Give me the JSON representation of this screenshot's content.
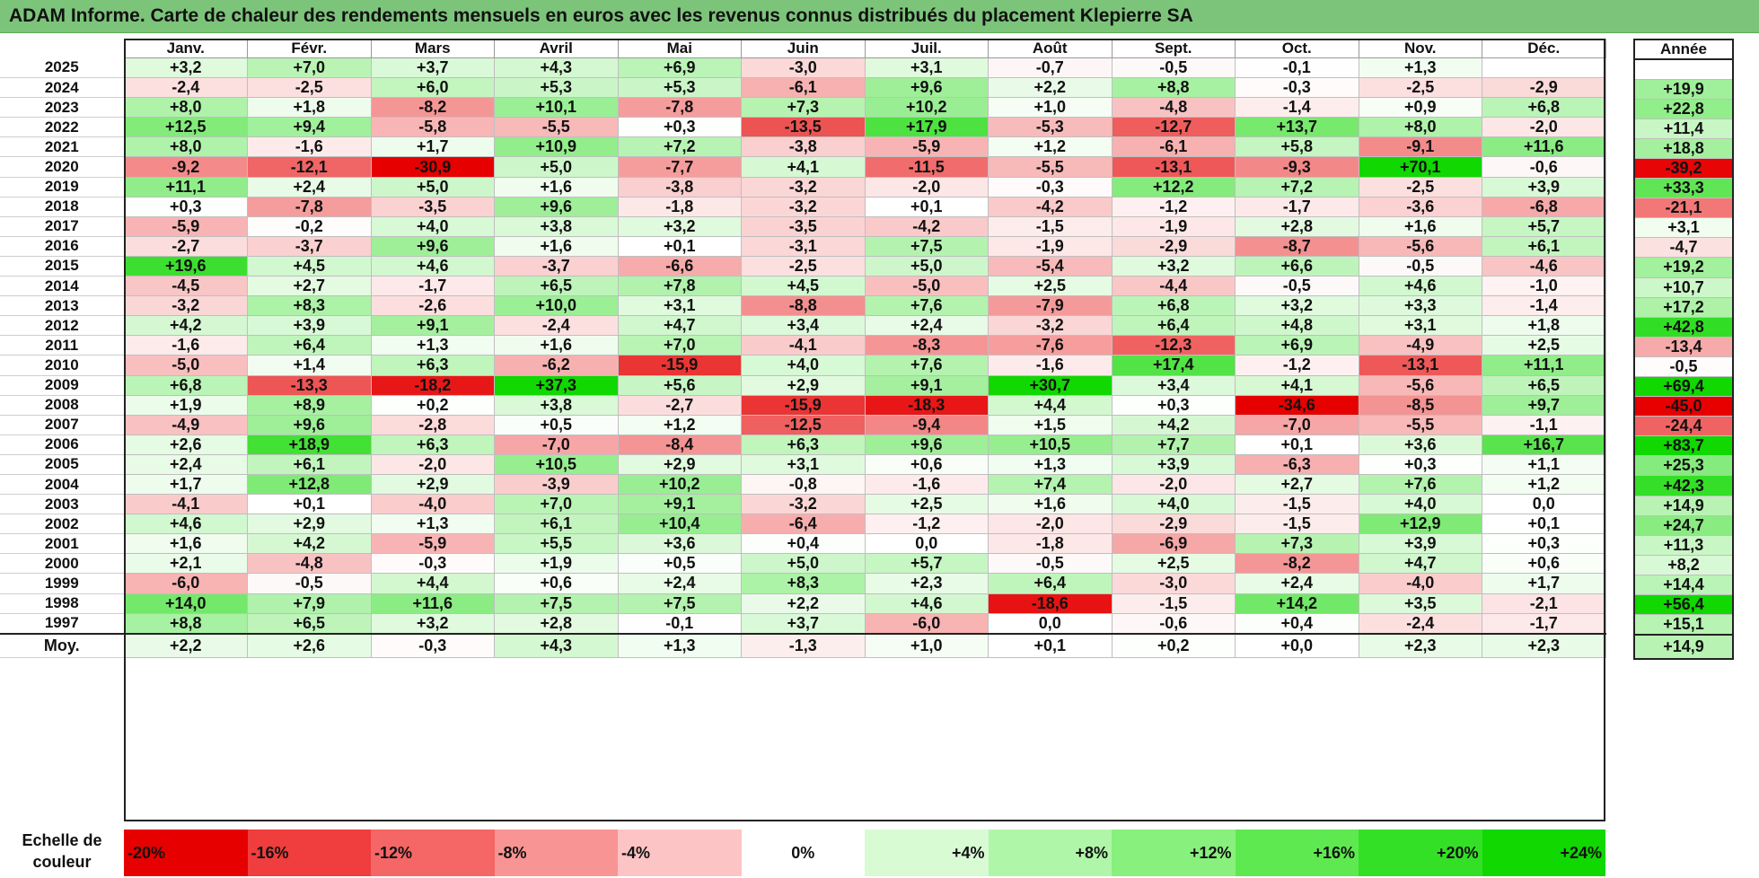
{
  "title": "ADAM Informe. Carte de chaleur des rendements mensuels en euros avec les revenus connus distribués du placement Klepierre SA",
  "chart_data": {
    "type": "heatmap",
    "title": "ADAM Informe. Carte de chaleur des rendements mensuels en euros avec les revenus connus distribués du placement Klepierre SA",
    "months": [
      "Janv.",
      "Févr.",
      "Mars",
      "Avril",
      "Mai",
      "Juin",
      "Juil.",
      "Août",
      "Sept.",
      "Oct.",
      "Nov.",
      "Déc."
    ],
    "year_header": "Année",
    "rows": [
      {
        "year": "2025",
        "values": [
          "+3,2",
          "+7,0",
          "+3,7",
          "+4,3",
          "+6,9",
          "-3,0",
          "+3,1",
          "-0,7",
          "-0,5",
          "-0,1",
          "+1,3",
          ""
        ],
        "annual": ""
      },
      {
        "year": "2024",
        "values": [
          "-2,4",
          "-2,5",
          "+6,0",
          "+5,3",
          "+5,3",
          "-6,1",
          "+9,6",
          "+2,2",
          "+8,8",
          "-0,3",
          "-2,5",
          "-2,9"
        ],
        "annual": "+19,9"
      },
      {
        "year": "2023",
        "values": [
          "+8,0",
          "+1,8",
          "-8,2",
          "+10,1",
          "-7,8",
          "+7,3",
          "+10,2",
          "+1,0",
          "-4,8",
          "-1,4",
          "+0,9",
          "+6,8"
        ],
        "annual": "+22,8"
      },
      {
        "year": "2022",
        "values": [
          "+12,5",
          "+9,4",
          "-5,8",
          "-5,5",
          "+0,3",
          "-13,5",
          "+17,9",
          "-5,3",
          "-12,7",
          "+13,7",
          "+8,0",
          "-2,0"
        ],
        "annual": "+11,4"
      },
      {
        "year": "2021",
        "values": [
          "+8,0",
          "-1,6",
          "+1,7",
          "+10,9",
          "+7,2",
          "-3,8",
          "-5,9",
          "+1,2",
          "-6,1",
          "+5,8",
          "-9,1",
          "+11,6"
        ],
        "annual": "+18,8"
      },
      {
        "year": "2020",
        "values": [
          "-9,2",
          "-12,1",
          "-30,9",
          "+5,0",
          "-7,7",
          "+4,1",
          "-11,5",
          "-5,5",
          "-13,1",
          "-9,3",
          "+70,1",
          "-0,6"
        ],
        "annual": "-39,2"
      },
      {
        "year": "2019",
        "values": [
          "+11,1",
          "+2,4",
          "+5,0",
          "+1,6",
          "-3,8",
          "-3,2",
          "-2,0",
          "-0,3",
          "+12,2",
          "+7,2",
          "-2,5",
          "+3,9"
        ],
        "annual": "+33,3"
      },
      {
        "year": "2018",
        "values": [
          "+0,3",
          "-7,8",
          "-3,5",
          "+9,6",
          "-1,8",
          "-3,2",
          "+0,1",
          "-4,2",
          "-1,2",
          "-1,7",
          "-3,6",
          "-6,8"
        ],
        "annual": "-21,1"
      },
      {
        "year": "2017",
        "values": [
          "-5,9",
          "-0,2",
          "+4,0",
          "+3,8",
          "+3,2",
          "-3,5",
          "-4,2",
          "-1,5",
          "-1,9",
          "+2,8",
          "+1,6",
          "+5,7"
        ],
        "annual": "+3,1"
      },
      {
        "year": "2016",
        "values": [
          "-2,7",
          "-3,7",
          "+9,6",
          "+1,6",
          "+0,1",
          "-3,1",
          "+7,5",
          "-1,9",
          "-2,9",
          "-8,7",
          "-5,6",
          "+6,1"
        ],
        "annual": "-4,7"
      },
      {
        "year": "2015",
        "values": [
          "+19,6",
          "+4,5",
          "+4,6",
          "-3,7",
          "-6,6",
          "-2,5",
          "+5,0",
          "-5,4",
          "+3,2",
          "+6,6",
          "-0,5",
          "-4,6"
        ],
        "annual": "+19,2"
      },
      {
        "year": "2014",
        "values": [
          "-4,5",
          "+2,7",
          "-1,7",
          "+6,5",
          "+7,8",
          "+4,5",
          "-5,0",
          "+2,5",
          "-4,4",
          "-0,5",
          "+4,6",
          "-1,0"
        ],
        "annual": "+10,7"
      },
      {
        "year": "2013",
        "values": [
          "-3,2",
          "+8,3",
          "-2,6",
          "+10,0",
          "+3,1",
          "-8,8",
          "+7,6",
          "-7,9",
          "+6,8",
          "+3,2",
          "+3,3",
          "-1,4"
        ],
        "annual": "+17,2"
      },
      {
        "year": "2012",
        "values": [
          "+4,2",
          "+3,9",
          "+9,1",
          "-2,4",
          "+4,7",
          "+3,4",
          "+2,4",
          "-3,2",
          "+6,4",
          "+4,8",
          "+3,1",
          "+1,8"
        ],
        "annual": "+42,8"
      },
      {
        "year": "2011",
        "values": [
          "-1,6",
          "+6,4",
          "+1,3",
          "+1,6",
          "+7,0",
          "-4,1",
          "-8,3",
          "-7,6",
          "-12,3",
          "+6,9",
          "-4,9",
          "+2,5"
        ],
        "annual": "-13,4"
      },
      {
        "year": "2010",
        "values": [
          "-5,0",
          "+1,4",
          "+6,3",
          "-6,2",
          "-15,9",
          "+4,0",
          "+7,6",
          "-1,6",
          "+17,4",
          "-1,2",
          "-13,1",
          "+11,1"
        ],
        "annual": "-0,5"
      },
      {
        "year": "2009",
        "values": [
          "+6,8",
          "-13,3",
          "-18,2",
          "+37,3",
          "+5,6",
          "+2,9",
          "+9,1",
          "+30,7",
          "+3,4",
          "+4,1",
          "-5,6",
          "+6,5"
        ],
        "annual": "+69,4"
      },
      {
        "year": "2008",
        "values": [
          "+1,9",
          "+8,9",
          "+0,2",
          "+3,8",
          "-2,7",
          "-15,9",
          "-18,3",
          "+4,4",
          "+0,3",
          "-34,6",
          "-8,5",
          "+9,7"
        ],
        "annual": "-45,0"
      },
      {
        "year": "2007",
        "values": [
          "-4,9",
          "+9,6",
          "-2,8",
          "+0,5",
          "+1,2",
          "-12,5",
          "-9,4",
          "+1,5",
          "+4,2",
          "-7,0",
          "-5,5",
          "-1,1"
        ],
        "annual": "-24,4"
      },
      {
        "year": "2006",
        "values": [
          "+2,6",
          "+18,9",
          "+6,3",
          "-7,0",
          "-8,4",
          "+6,3",
          "+9,6",
          "+10,5",
          "+7,7",
          "+0,1",
          "+3,6",
          "+16,7"
        ],
        "annual": "+83,7"
      },
      {
        "year": "2005",
        "values": [
          "+2,4",
          "+6,1",
          "-2,0",
          "+10,5",
          "+2,9",
          "+3,1",
          "+0,6",
          "+1,3",
          "+3,9",
          "-6,3",
          "+0,3",
          "+1,1"
        ],
        "annual": "+25,3"
      },
      {
        "year": "2004",
        "values": [
          "+1,7",
          "+12,8",
          "+2,9",
          "-3,9",
          "+10,2",
          "-0,8",
          "-1,6",
          "+7,4",
          "-2,0",
          "+2,7",
          "+7,6",
          "+1,2"
        ],
        "annual": "+42,3"
      },
      {
        "year": "2003",
        "values": [
          "-4,1",
          "+0,1",
          "-4,0",
          "+7,0",
          "+9,1",
          "-3,2",
          "+2,5",
          "+1,6",
          "+4,0",
          "-1,5",
          "+4,0",
          "0,0"
        ],
        "annual": "+14,9"
      },
      {
        "year": "2002",
        "values": [
          "+4,6",
          "+2,9",
          "+1,3",
          "+6,1",
          "+10,4",
          "-6,4",
          "-1,2",
          "-2,0",
          "-2,9",
          "-1,5",
          "+12,9",
          "+0,1"
        ],
        "annual": "+24,7"
      },
      {
        "year": "2001",
        "values": [
          "+1,6",
          "+4,2",
          "-5,9",
          "+5,5",
          "+3,6",
          "+0,4",
          "0,0",
          "-1,8",
          "-6,9",
          "+7,3",
          "+3,9",
          "+0,3"
        ],
        "annual": "+11,3"
      },
      {
        "year": "2000",
        "values": [
          "+2,1",
          "-4,8",
          "-0,3",
          "+1,9",
          "+0,5",
          "+5,0",
          "+5,7",
          "-0,5",
          "+2,5",
          "-8,2",
          "+4,7",
          "+0,6"
        ],
        "annual": "+8,2"
      },
      {
        "year": "1999",
        "values": [
          "-6,0",
          "-0,5",
          "+4,4",
          "+0,6",
          "+2,4",
          "+8,3",
          "+2,3",
          "+6,4",
          "-3,0",
          "+2,4",
          "-4,0",
          "+1,7"
        ],
        "annual": "+14,4"
      },
      {
        "year": "1998",
        "values": [
          "+14,0",
          "+7,9",
          "+11,6",
          "+7,5",
          "+7,5",
          "+2,2",
          "+4,6",
          "-18,6",
          "-1,5",
          "+14,2",
          "+3,5",
          "-2,1"
        ],
        "annual": "+56,4"
      },
      {
        "year": "1997",
        "values": [
          "+8,8",
          "+6,5",
          "+3,2",
          "+2,8",
          "-0,1",
          "+3,7",
          "-6,0",
          "0,0",
          "-0,6",
          "+0,4",
          "-2,4",
          "-1,7"
        ],
        "annual": "+15,1"
      }
    ],
    "average": {
      "label": "Moy.",
      "values": [
        "+2,2",
        "+2,6",
        "-0,3",
        "+4,3",
        "+1,3",
        "-1,3",
        "+1,0",
        "+0,1",
        "+0,2",
        "+0,0",
        "+2,3",
        "+2,3"
      ],
      "annual": "+14,9"
    },
    "color_scale": {
      "label": "Echelle de couleur",
      "steps": [
        "-20%",
        "-16%",
        "-12%",
        "-8%",
        "-4%",
        "0%",
        "+4%",
        "+8%",
        "+12%",
        "+16%",
        "+20%",
        "+24%"
      ],
      "colors": [
        "#e60000",
        "#f03d3d",
        "#f56666",
        "#f99494",
        "#fcc4c4",
        "#ffffff",
        "#d8fbd4",
        "#b0f6a8",
        "#88f07c",
        "#5fe950",
        "#34e026",
        "#10d800"
      ],
      "negative_color": "#e60000",
      "neutral_color": "#ffffff",
      "positive_color": "#10d800"
    }
  }
}
